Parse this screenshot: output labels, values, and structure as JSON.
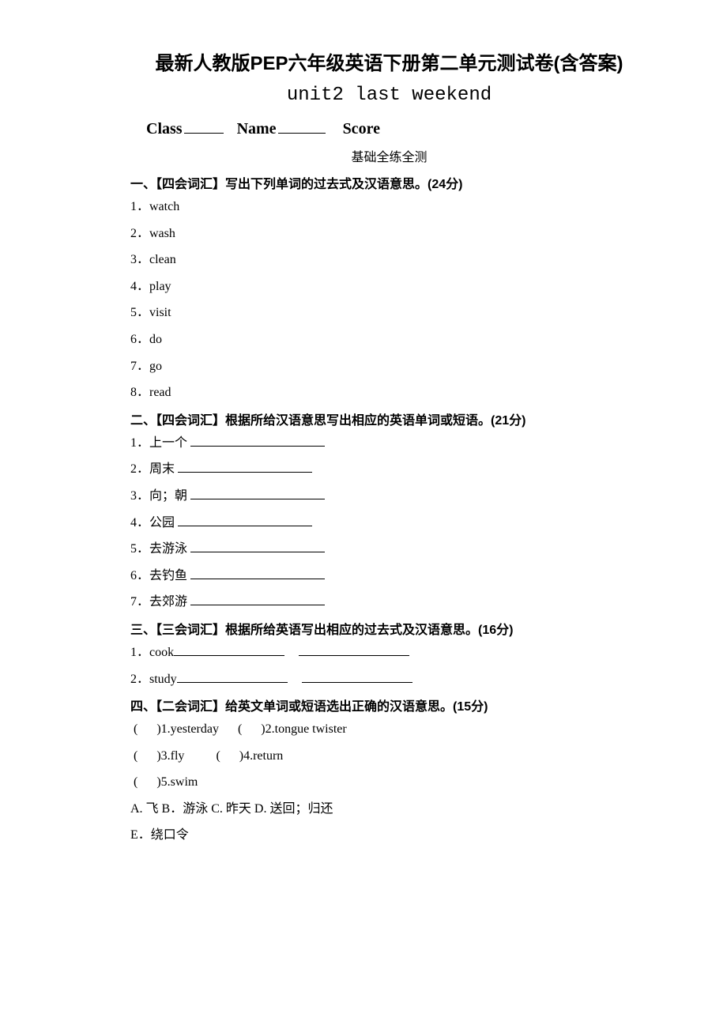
{
  "title": "最新人教版PEP六年级英语下册第二单元测试卷(含答案)",
  "subtitle": "unit2 last weekend",
  "classLine": {
    "classLabel": "Class",
    "nameLabel": "Name",
    "scoreLabel": "Score"
  },
  "sectionTitle": "基础全练全测",
  "section1": {
    "heading": "一、【四会词汇】写出下列单词的过去式及汉语意思。(24分)",
    "items": [
      "1．watch",
      "2．wash",
      "3．clean",
      "4．play",
      "5．visit",
      "6．do",
      "7．go",
      "8．read"
    ]
  },
  "section2": {
    "heading": "二、【四会词汇】根据所给汉语意思写出相应的英语单词或短语。(21分)",
    "items": [
      "1．上一个 ",
      "2．周末 ",
      "3．向；朝 ",
      "4．公园 ",
      "5．去游泳 ",
      "6．去钓鱼 ",
      "7．去郊游 "
    ]
  },
  "section3": {
    "heading": "三、【三会词汇】根据所给英语写出相应的过去式及汉语意思。(16分)",
    "items": [
      "1．cook",
      "2．study"
    ]
  },
  "section4": {
    "heading": "四、【二会词汇】给英文单词或短语选出正确的汉语意思。(15分)",
    "row1": {
      "q1_label": ")1.yesterday",
      "q2_label": ")2.tongue twister"
    },
    "row2": {
      "q3_label": ")3.fly",
      "q4_label": ")4.return"
    },
    "row3": {
      "q5_label": ")5.swim"
    },
    "optionsLine1": "A. 飞   B．游泳   C. 昨天   D. 送回；归还",
    "optionsLine2": "E．绕口令"
  },
  "styles": {
    "background": "#ffffff",
    "textColor": "#000000",
    "titleFontSize": 24,
    "bodyFontSize": 16
  }
}
